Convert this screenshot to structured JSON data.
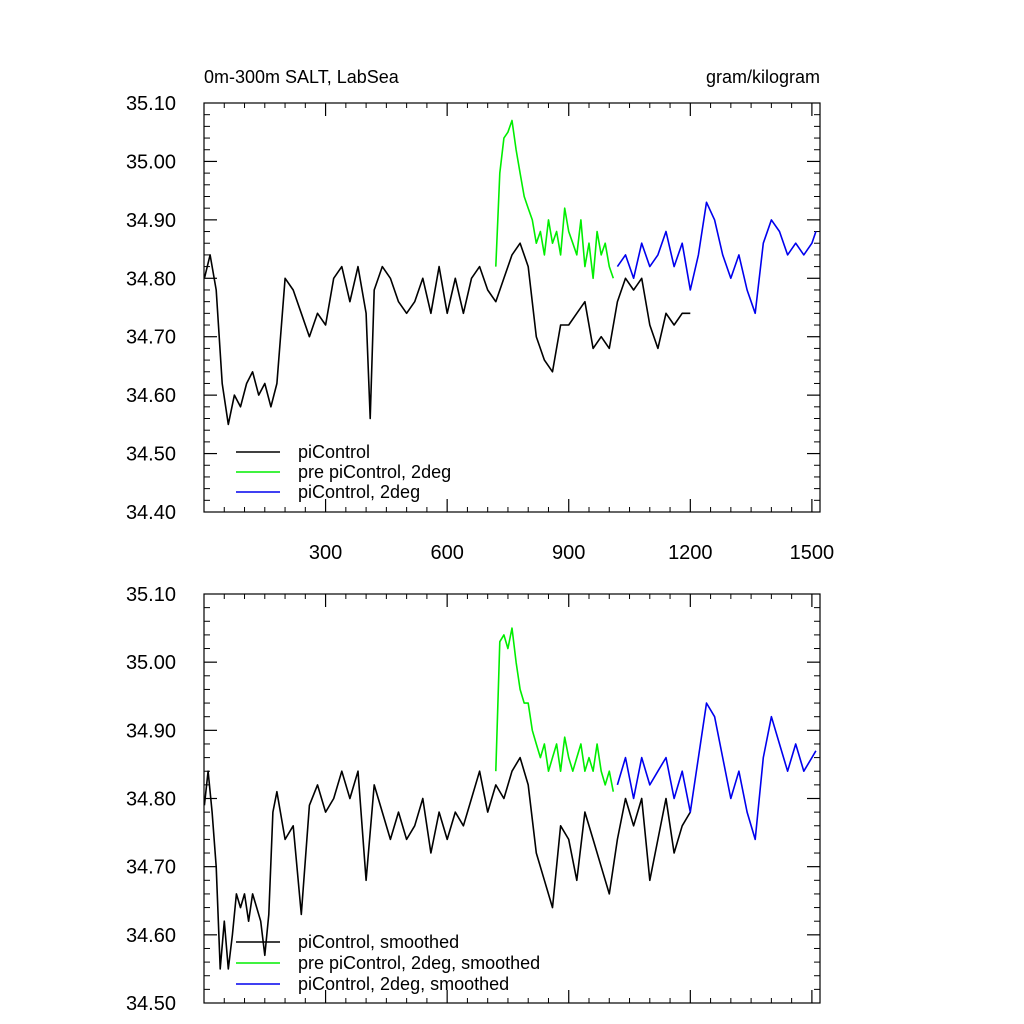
{
  "chart_data": [
    {
      "type": "line",
      "title_left": "0m-300m SALT, LabSea",
      "title_right": "gram/kilogram",
      "xlabel": "",
      "ylabel": "",
      "xlim": [
        0,
        1520
      ],
      "ylim": [
        34.4,
        35.1
      ],
      "xticks": [
        300,
        600,
        900,
        1200,
        1500
      ],
      "yticks": [
        "34.40",
        "34.50",
        "34.60",
        "34.70",
        "34.80",
        "34.90",
        "35.00",
        "35.10"
      ],
      "show_xtick_labels": true,
      "grid": false,
      "legend_position": "bottom-left",
      "series": [
        {
          "name": "piControl",
          "color": "#000000",
          "x": [
            1,
            15,
            30,
            45,
            60,
            75,
            90,
            105,
            120,
            135,
            150,
            165,
            180,
            200,
            220,
            240,
            260,
            280,
            300,
            320,
            340,
            360,
            380,
            400,
            410,
            420,
            440,
            460,
            480,
            500,
            520,
            540,
            560,
            580,
            600,
            620,
            640,
            660,
            680,
            700,
            720,
            740,
            760,
            780,
            800,
            820,
            840,
            860,
            880,
            900,
            920,
            940,
            960,
            980,
            1000,
            1020,
            1040,
            1060,
            1080,
            1100,
            1120,
            1140,
            1160,
            1180,
            1200
          ],
          "y": [
            34.8,
            34.84,
            34.78,
            34.62,
            34.55,
            34.6,
            34.58,
            34.62,
            34.64,
            34.6,
            34.62,
            34.58,
            34.62,
            34.8,
            34.78,
            34.74,
            34.7,
            34.74,
            34.72,
            34.8,
            34.82,
            34.76,
            34.82,
            34.74,
            34.56,
            34.78,
            34.82,
            34.8,
            34.76,
            34.74,
            34.76,
            34.8,
            34.74,
            34.82,
            34.74,
            34.8,
            34.74,
            34.8,
            34.82,
            34.78,
            34.76,
            34.8,
            34.84,
            34.86,
            34.82,
            34.7,
            34.66,
            34.64,
            34.72,
            34.72,
            34.74,
            34.76,
            34.68,
            34.7,
            34.68,
            34.76,
            34.8,
            34.78,
            34.8,
            34.72,
            34.68,
            34.74,
            34.72,
            34.74,
            34.74
          ]
        },
        {
          "name": "pre piControl, 2deg",
          "color": "#00ee00",
          "x": [
            720,
            730,
            740,
            750,
            760,
            770,
            780,
            790,
            800,
            810,
            820,
            830,
            840,
            850,
            860,
            870,
            880,
            890,
            900,
            910,
            920,
            930,
            940,
            950,
            960,
            970,
            980,
            990,
            1000,
            1010
          ],
          "y": [
            34.82,
            34.98,
            35.04,
            35.05,
            35.07,
            35.02,
            34.98,
            34.94,
            34.92,
            34.9,
            34.86,
            34.88,
            34.84,
            34.9,
            34.86,
            34.88,
            34.84,
            34.92,
            34.88,
            34.86,
            34.84,
            34.9,
            34.82,
            34.86,
            34.8,
            34.88,
            34.84,
            34.86,
            34.82,
            34.8
          ]
        },
        {
          "name": "piControl, 2deg",
          "color": "#0000ee",
          "x": [
            1020,
            1040,
            1060,
            1080,
            1100,
            1120,
            1140,
            1160,
            1180,
            1200,
            1220,
            1240,
            1260,
            1280,
            1300,
            1320,
            1340,
            1360,
            1380,
            1400,
            1420,
            1440,
            1460,
            1480,
            1500,
            1510
          ],
          "y": [
            34.82,
            34.84,
            34.8,
            34.86,
            34.82,
            34.84,
            34.88,
            34.82,
            34.86,
            34.78,
            34.84,
            34.93,
            34.9,
            34.84,
            34.8,
            34.84,
            34.78,
            34.74,
            34.86,
            34.9,
            34.88,
            34.84,
            34.86,
            34.84,
            34.86,
            34.88
          ]
        }
      ]
    },
    {
      "type": "line",
      "xlabel": "",
      "ylabel": "",
      "xlim": [
        0,
        1520
      ],
      "ylim": [
        34.5,
        35.1
      ],
      "xticks": [
        300,
        600,
        900,
        1200,
        1500
      ],
      "yticks": [
        "34.50",
        "34.60",
        "34.70",
        "34.80",
        "34.90",
        "35.00",
        "35.10"
      ],
      "show_xtick_labels": false,
      "grid": false,
      "legend_position": "bottom-left",
      "series": [
        {
          "name": "piControl, smoothed",
          "color": "#000000",
          "x": [
            1,
            10,
            20,
            30,
            40,
            50,
            60,
            70,
            80,
            90,
            100,
            110,
            120,
            130,
            140,
            150,
            160,
            170,
            180,
            200,
            220,
            240,
            260,
            280,
            300,
            320,
            340,
            360,
            380,
            400,
            420,
            440,
            460,
            480,
            500,
            520,
            540,
            560,
            580,
            600,
            620,
            640,
            660,
            680,
            700,
            720,
            740,
            760,
            780,
            800,
            820,
            840,
            860,
            880,
            900,
            920,
            940,
            960,
            980,
            1000,
            1020,
            1040,
            1060,
            1080,
            1100,
            1120,
            1140,
            1160,
            1180,
            1200
          ],
          "y": [
            34.79,
            34.84,
            34.78,
            34.7,
            34.55,
            34.62,
            34.55,
            34.6,
            34.66,
            34.64,
            34.66,
            34.62,
            34.66,
            34.64,
            34.62,
            34.57,
            34.63,
            34.78,
            34.81,
            34.74,
            34.76,
            34.63,
            34.79,
            34.82,
            34.78,
            34.8,
            34.84,
            34.8,
            34.84,
            34.68,
            34.82,
            34.78,
            34.74,
            34.78,
            34.74,
            34.76,
            34.8,
            34.72,
            34.78,
            34.74,
            34.78,
            34.76,
            34.8,
            34.84,
            34.78,
            34.82,
            34.8,
            34.84,
            34.86,
            34.82,
            34.72,
            34.68,
            34.64,
            34.76,
            34.74,
            34.68,
            34.78,
            34.74,
            34.7,
            34.66,
            34.74,
            34.8,
            34.76,
            34.8,
            34.68,
            34.74,
            34.8,
            34.72,
            34.76,
            34.78
          ]
        },
        {
          "name": "pre piControl, 2deg, smoothed",
          "color": "#00ee00",
          "x": [
            720,
            730,
            740,
            750,
            760,
            770,
            780,
            790,
            800,
            810,
            820,
            830,
            840,
            850,
            860,
            870,
            880,
            890,
            900,
            910,
            920,
            930,
            940,
            950,
            960,
            970,
            980,
            990,
            1000,
            1010
          ],
          "y": [
            34.84,
            35.03,
            35.04,
            35.02,
            35.05,
            35.0,
            34.96,
            34.94,
            34.94,
            34.9,
            34.88,
            34.86,
            34.88,
            34.84,
            34.86,
            34.88,
            34.84,
            34.89,
            34.86,
            34.84,
            34.86,
            34.88,
            34.84,
            34.86,
            34.84,
            34.88,
            34.84,
            34.82,
            34.84,
            34.81
          ]
        },
        {
          "name": "piControl, 2deg, smoothed",
          "color": "#0000ee",
          "x": [
            1020,
            1040,
            1060,
            1080,
            1100,
            1120,
            1140,
            1160,
            1180,
            1200,
            1220,
            1240,
            1260,
            1280,
            1300,
            1320,
            1340,
            1360,
            1380,
            1400,
            1420,
            1440,
            1460,
            1480,
            1500,
            1510
          ],
          "y": [
            34.82,
            34.86,
            34.8,
            34.86,
            34.82,
            34.84,
            34.86,
            34.8,
            34.84,
            34.78,
            34.86,
            34.94,
            34.92,
            34.86,
            34.8,
            34.84,
            34.78,
            34.74,
            34.86,
            34.92,
            34.88,
            34.84,
            34.88,
            34.84,
            34.86,
            34.87
          ]
        }
      ]
    }
  ]
}
